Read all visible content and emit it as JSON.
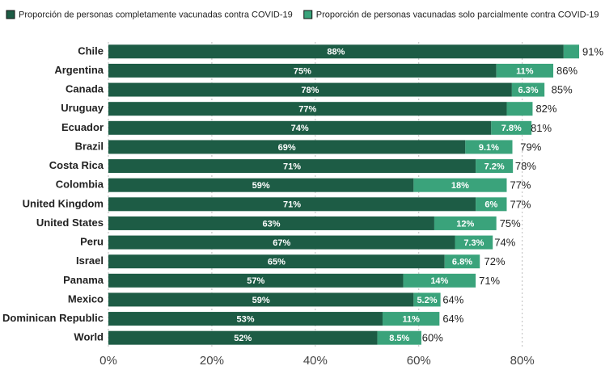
{
  "chart_data": {
    "type": "stacked-bar-horizontal",
    "categories": [
      "Chile",
      "Argentina",
      "Canada",
      "Uruguay",
      "Ecuador",
      "Brazil",
      "Costa Rica",
      "Colombia",
      "United Kingdom",
      "United States",
      "Peru",
      "Israel",
      "Panama",
      "Mexico",
      "Dominican Republic",
      "World"
    ],
    "series": [
      {
        "name": "Proporción de personas completamente vacunadas contra COVID-19",
        "color": "#1d5c45",
        "values": [
          88,
          75,
          78,
          77,
          74,
          69,
          71,
          59,
          71,
          63,
          67,
          65,
          57,
          59,
          53,
          52
        ],
        "value_labels": [
          "88%",
          "75%",
          "78%",
          "77%",
          "74%",
          "69%",
          "71%",
          "59%",
          "71%",
          "63%",
          "67%",
          "65%",
          "57%",
          "59%",
          "53%",
          "52%"
        ]
      },
      {
        "name": "Proporción de personas vacunadas solo parcialmente contra COVID-19",
        "color": "#3aa37b",
        "values": [
          3,
          11,
          6.3,
          5,
          7.8,
          9.1,
          7.2,
          18,
          6,
          12,
          7.3,
          6.8,
          14,
          5.2,
          11,
          8.5
        ],
        "value_labels": [
          null,
          "11%",
          "6.3%",
          null,
          "7.8%",
          "9.1%",
          "7.2%",
          "18%",
          "6%",
          "12%",
          "7.3%",
          "6.8%",
          "14%",
          "5.2%",
          "11%",
          "8.5%"
        ]
      }
    ],
    "totals": {
      "values": [
        91,
        86,
        85,
        82,
        81,
        79,
        78,
        77,
        77,
        75,
        74,
        72,
        71,
        64,
        64,
        60
      ],
      "value_labels": [
        "91%",
        "86%",
        "85%",
        "82%",
        "81%",
        "79%",
        "78%",
        "77%",
        "77%",
        "75%",
        "74%",
        "72%",
        "71%",
        "64%",
        "64%",
        "60%"
      ]
    },
    "xlim": [
      0,
      96
    ],
    "xticks": [
      {
        "value": 0,
        "label": "0%"
      },
      {
        "value": 20,
        "label": "20%"
      },
      {
        "value": 40,
        "label": "40%"
      },
      {
        "value": 60,
        "label": "60%"
      },
      {
        "value": 80,
        "label": "80%"
      }
    ],
    "grid": true
  }
}
